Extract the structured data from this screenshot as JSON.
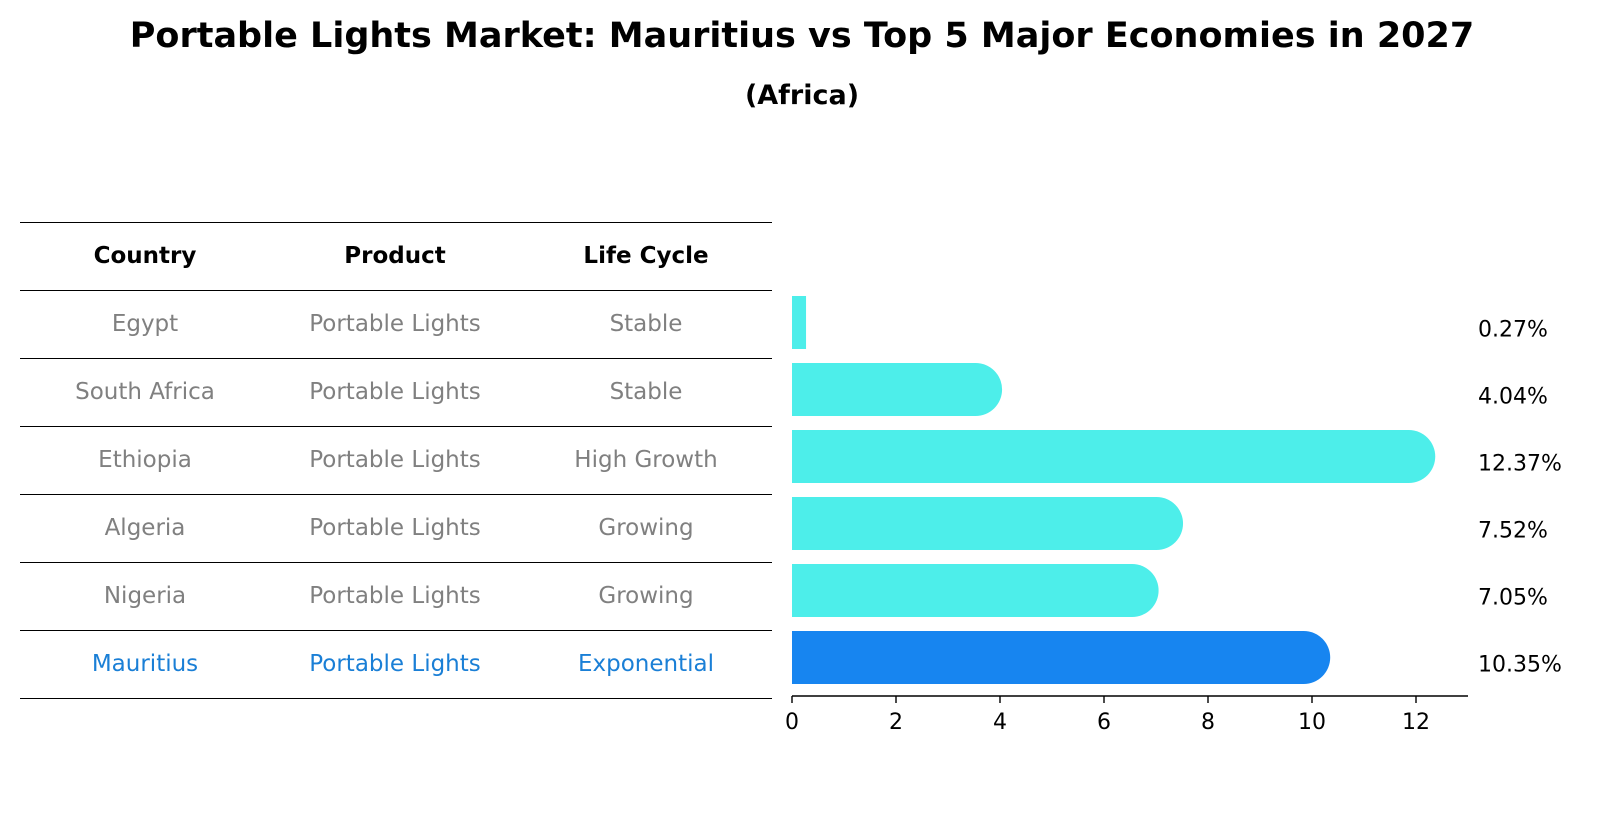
{
  "title": "Portable Lights Market: Mauritius vs Top 5 Major Economies in 2027",
  "subtitle": "(Africa)",
  "table": {
    "headers": [
      "Country",
      "Product",
      "Life Cycle"
    ],
    "rows": [
      [
        "Egypt",
        "Portable Lights",
        "Stable"
      ],
      [
        "South Africa",
        "Portable Lights",
        "Stable"
      ],
      [
        "Ethiopia",
        "Portable Lights",
        "High Growth"
      ],
      [
        "Algeria",
        "Portable Lights",
        "Growing"
      ],
      [
        "Nigeria",
        "Portable Lights",
        "Growing"
      ],
      [
        "Mauritius",
        "Portable Lights",
        "Exponential"
      ]
    ],
    "highlight_row": "Mauritius"
  },
  "chart_data": {
    "type": "bar",
    "orientation": "horizontal",
    "categories": [
      "Egypt",
      "South Africa",
      "Ethiopia",
      "Algeria",
      "Nigeria",
      "Mauritius"
    ],
    "values": [
      0.27,
      4.04,
      12.37,
      7.52,
      7.05,
      10.35
    ],
    "value_labels": [
      "0.27%",
      "4.04%",
      "12.37%",
      "7.52%",
      "7.05%",
      "10.35%"
    ],
    "x_ticks": [
      0,
      2,
      4,
      6,
      8,
      10,
      12
    ],
    "xlim": [
      0,
      13
    ],
    "highlight": "Mauritius",
    "colors": {
      "default": "#4deeea",
      "highlight": "#1785f0"
    }
  }
}
